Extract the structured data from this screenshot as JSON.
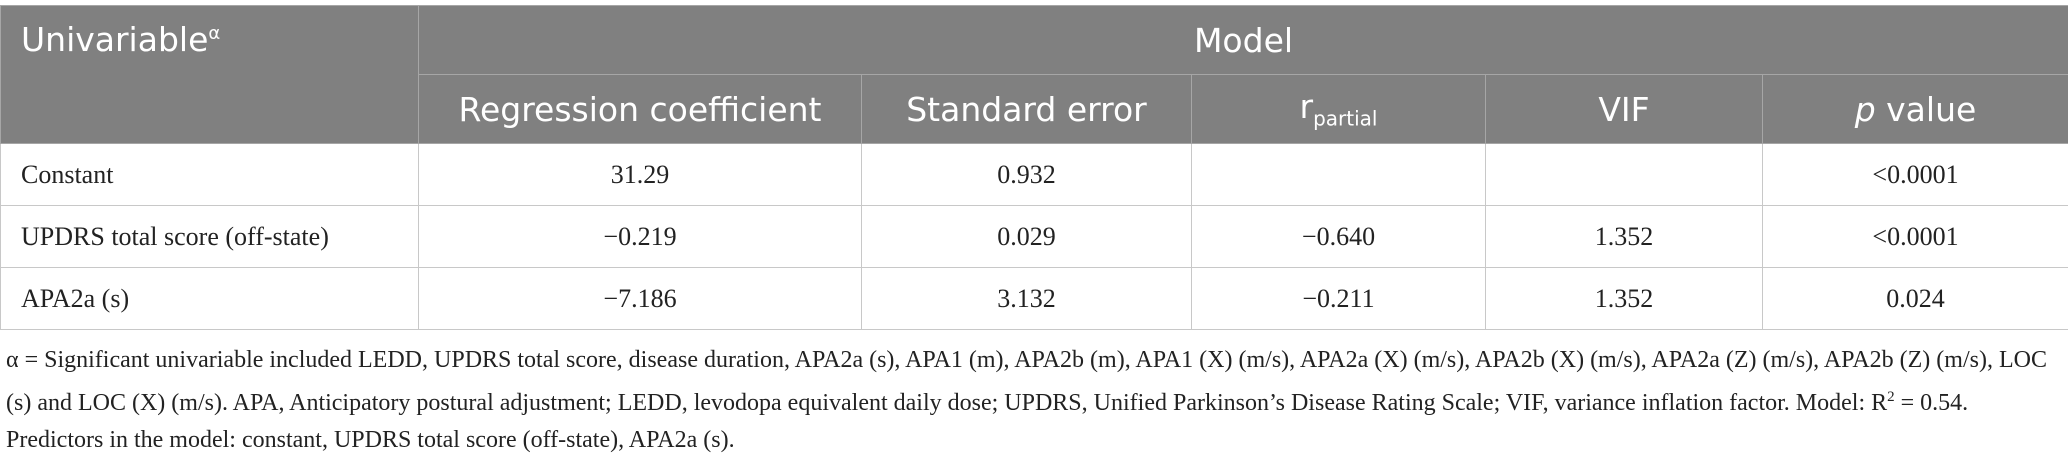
{
  "header": {
    "title": "Univariable",
    "title_sup": "α",
    "group": "Model",
    "columns": [
      {
        "text": "Regression coefficient"
      },
      {
        "text": "Standard error"
      },
      {
        "base": "r",
        "sub": "partial"
      },
      {
        "text": "VIF"
      },
      {
        "italic": "p",
        "rest": " value"
      }
    ]
  },
  "table": {
    "rows": [
      [
        "Constant",
        "31.29",
        "0.932",
        null,
        null,
        "<0.0001"
      ],
      [
        "UPDRS total score (off-state)",
        "−0.219",
        "0.029",
        "−0.640",
        "1.352",
        "<0.0001"
      ],
      [
        "APA2a (s)",
        "−7.186",
        "3.132",
        "−0.211",
        "1.352",
        "0.024"
      ]
    ]
  },
  "footnote": {
    "marker": "α",
    "text1": " = Significant univariable included LEDD, UPDRS total score, disease duration, APA2a (s), APA1 (m), APA2b (m), APA1 (X) (m/s), APA2a (X) (m/s), APA2b (X) (m/s), APA2a (Z) (m/s), APA2b (Z) (m/s), LOC (s) and LOC (X) (m/s). APA, Anticipatory postural adjustment; LEDD, levodopa equivalent daily dose; UPDRS, Unified Parkinson’s Disease Rating Scale; VIF, variance inflation factor. Model: R",
    "sup": "2",
    "text2": " = 0.54. Predictors in the model: constant, UPDRS total score (off-state), APA2a (s)."
  }
}
